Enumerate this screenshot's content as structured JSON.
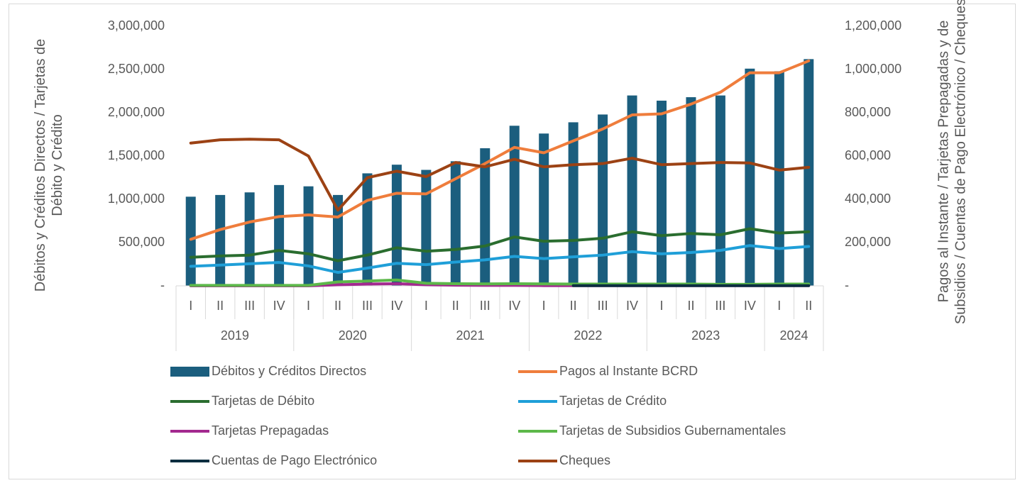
{
  "chart_data": {
    "type": "combo",
    "y_label": "Débitos y Créditos Directos / Tarjetas de Débito y Crédito",
    "y2_label": "Pagos al Instante / Tarjetas Prepagadas y de Subsidios / Cuentas de Pago Electrónico / Cheques",
    "categories": [
      "I",
      "II",
      "III",
      "IV",
      "I",
      "II",
      "III",
      "IV",
      "I",
      "II",
      "III",
      "IV",
      "I",
      "II",
      "III",
      "IV",
      "I",
      "II",
      "III",
      "IV",
      "I",
      "II"
    ],
    "category_groups": [
      {
        "name": "2019",
        "span": 4
      },
      {
        "name": "2020",
        "span": 4
      },
      {
        "name": "2021",
        "span": 4
      },
      {
        "name": "2022",
        "span": 4
      },
      {
        "name": "2023",
        "span": 4
      },
      {
        "name": "2024",
        "span": 2
      }
    ],
    "ylim": [
      0,
      3000000
    ],
    "yticks": [
      {
        "value": 0,
        "label": "-"
      },
      {
        "value": 500000,
        "label": "500,000"
      },
      {
        "value": 1000000,
        "label": "1,000,000"
      },
      {
        "value": 1500000,
        "label": "1,500,000"
      },
      {
        "value": 2000000,
        "label": "2,000,000"
      },
      {
        "value": 2500000,
        "label": "2,500,000"
      },
      {
        "value": 3000000,
        "label": "3,000,000"
      }
    ],
    "y2lim": [
      0,
      1200000
    ],
    "y2ticks": [
      {
        "value": 0,
        "label": "-"
      },
      {
        "value": 200000,
        "label": "200,000"
      },
      {
        "value": 400000,
        "label": "400,000"
      },
      {
        "value": 600000,
        "label": "600,000"
      },
      {
        "value": 800000,
        "label": "800,000"
      },
      {
        "value": 1000000,
        "label": "1,000,000"
      },
      {
        "value": 1200000,
        "label": "1,200,000"
      }
    ],
    "series": [
      {
        "name": "Débitos y Créditos Directos",
        "type": "bar",
        "axis": "y",
        "color": "#1b5e7e",
        "values": [
          1030000,
          1050000,
          1080000,
          1165000,
          1150000,
          1050000,
          1300000,
          1400000,
          1340000,
          1440000,
          1590000,
          1850000,
          1760000,
          1890000,
          1980000,
          2200000,
          2140000,
          2180000,
          2200000,
          2510000,
          2480000,
          2620000
        ]
      },
      {
        "name": "Pagos al Instante BCRD",
        "type": "line",
        "axis": "y2",
        "color": "#ef7d3c",
        "values": [
          215000,
          260000,
          295000,
          320000,
          328000,
          318000,
          395000,
          428000,
          425000,
          495000,
          565000,
          640000,
          615000,
          670000,
          725000,
          790000,
          795000,
          840000,
          895000,
          985000,
          985000,
          1040000
        ]
      },
      {
        "name": "Tarjetas de Débito",
        "type": "line",
        "axis": "y",
        "color": "#2a6d2f",
        "values": [
          330000,
          345000,
          355000,
          410000,
          370000,
          290000,
          355000,
          440000,
          400000,
          420000,
          460000,
          565000,
          515000,
          525000,
          550000,
          625000,
          580000,
          605000,
          590000,
          660000,
          610000,
          625000
        ]
      },
      {
        "name": "Tarjetas de Crédito",
        "type": "line",
        "axis": "y",
        "color": "#1f9fd8",
        "values": [
          225000,
          240000,
          255000,
          270000,
          230000,
          155000,
          205000,
          260000,
          245000,
          275000,
          300000,
          340000,
          315000,
          335000,
          355000,
          395000,
          370000,
          385000,
          410000,
          465000,
          430000,
          455000
        ]
      },
      {
        "name": "Tarjetas Prepagadas",
        "type": "line",
        "axis": "y2",
        "color": "#a3298f",
        "values": [
          0,
          0,
          0,
          0,
          0,
          5000,
          8000,
          10000,
          5000,
          3000,
          2000,
          2000,
          1000,
          1000,
          1000,
          1000,
          1000,
          1000,
          1000,
          1000,
          1000,
          1000
        ]
      },
      {
        "name": "Tarjetas de Subsidios Gubernamentales",
        "type": "line",
        "axis": "y2",
        "color": "#5db84a",
        "values": [
          2000,
          2000,
          2000,
          2000,
          2000,
          18000,
          22000,
          27000,
          12000,
          10000,
          9000,
          10000,
          9000,
          8000,
          8000,
          8000,
          8000,
          8000,
          7000,
          7000,
          8000,
          8000
        ]
      },
      {
        "name": "Cuentas de Pago Electrónico",
        "type": "line",
        "axis": "y2",
        "color": "#0b2e40",
        "values": [
          null,
          null,
          null,
          null,
          null,
          null,
          null,
          null,
          null,
          null,
          null,
          null,
          null,
          1000,
          1000,
          1000,
          1000,
          1000,
          1000,
          1000,
          1000,
          1000
        ]
      },
      {
        "name": "Cheques",
        "type": "line",
        "axis": "y2",
        "color": "#9c4214",
        "values": [
          660000,
          675000,
          678000,
          675000,
          600000,
          350000,
          500000,
          530000,
          505000,
          570000,
          550000,
          585000,
          550000,
          560000,
          565000,
          590000,
          560000,
          565000,
          570000,
          568000,
          535000,
          548000
        ]
      }
    ]
  }
}
